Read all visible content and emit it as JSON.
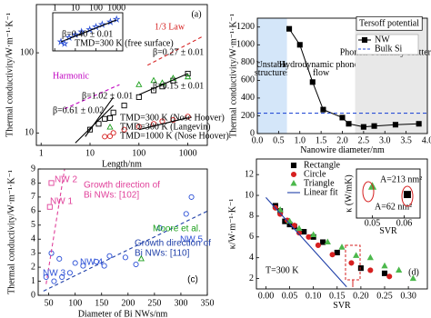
{
  "chart_data": [
    {
      "type": "scatter",
      "x_label": "Length/nm",
      "y_label": "Thermal conductivity/W·m⁻¹·K⁻¹",
      "xlog": true,
      "ylog": true,
      "xlim": [
        0.8,
        2500
      ],
      "ylim": [
        7,
        400
      ],
      "xticks": [
        1,
        10,
        100,
        1000
      ],
      "yticks": [
        10,
        100
      ],
      "series": [
        {
          "name": "TMD=300 K (Nose Hoover)",
          "marker": "square",
          "filled": false,
          "color": "#000000",
          "x": [
            10,
            15,
            20,
            30,
            50,
            100,
            200,
            300,
            500,
            1000
          ],
          "values": [
            11,
            13,
            15,
            18,
            22,
            28,
            34,
            38,
            45,
            55
          ]
        },
        {
          "name": "TMD=300 K (Langevin)",
          "marker": "triangle",
          "filled": false,
          "color": "#1a9e1a",
          "x": [
            100,
            200,
            300,
            500,
            1000
          ],
          "values": [
            40,
            45,
            42,
            48,
            50
          ]
        },
        {
          "name": "TMD=1000 K (Nose Hoover)",
          "marker": "circle",
          "filled": false,
          "color": "#d62020",
          "x": [
            20,
            30,
            50,
            100,
            200,
            300,
            500,
            1000
          ],
          "values": [
            9,
            10,
            11,
            12,
            13,
            14,
            14.5,
            16
          ]
        },
        {
          "marker": "line",
          "color": "#000000",
          "x": [
            100,
            1000
          ],
          "values": [
            30,
            55
          ]
        },
        {
          "marker": "line",
          "color": "#000000",
          "x": [
            8,
            30
          ],
          "values": [
            9,
            28
          ]
        },
        {
          "marker": "line",
          "color": "#000000",
          "x": [
            100,
            1000
          ],
          "values": [
            11,
            15.5
          ]
        },
        {
          "marker": "line",
          "color": "#000000",
          "x": [
            5,
            30
          ],
          "values": [
            7.5,
            22
          ]
        },
        {
          "marker": "dashed",
          "color": "#d62020",
          "x": [
            150,
            2000
          ],
          "values": [
            70,
            160
          ]
        },
        {
          "marker": "dashed",
          "color": "#c000c0",
          "x": [
            3,
            40
          ],
          "values": [
            20,
            40
          ]
        }
      ],
      "annotations": [
        {
          "text": "(a)",
          "color": "#000000"
        },
        {
          "text": "1/3 Law",
          "color": "#d62020"
        },
        {
          "text": "Harmonic",
          "color": "#c000c0"
        },
        {
          "text": "β=0.27 ± 0.01",
          "color": "#000000"
        },
        {
          "text": "β=1.02 ± 0.01",
          "color": "#000000"
        },
        {
          "text": "β=0.15 ± 0.01",
          "color": "#000000"
        },
        {
          "text": "β=0.61 ± 0.02",
          "color": "#000000"
        }
      ],
      "inset": {
        "type": "scatter",
        "xlog": true,
        "ylog": true,
        "xlim": [
          0.8,
          2000
        ],
        "ylim": [
          1,
          100
        ],
        "xticks": [
          1,
          10,
          100,
          1000
        ],
        "series": [
          {
            "name": "TMD=300 K (free surface)",
            "marker": "star",
            "filled": false,
            "color": "#2a4fd6",
            "x": [
              2,
              5,
              10,
              20,
              50,
              100,
              200,
              500,
              1000
            ],
            "values": [
              3,
              5,
              7,
              10,
              13,
              18,
              24,
              33,
              45
            ]
          },
          {
            "marker": "line",
            "color": "#000000",
            "x": [
              2,
              1000
            ],
            "values": [
              3,
              42
            ]
          }
        ],
        "annotations": [
          {
            "text": "β=0.40 ± 0.01",
            "color": "#000000"
          }
        ]
      }
    },
    {
      "type": "scatter",
      "x_label": "Nanowire diameter/nm",
      "y_label": "Thermal conductivity/W·m⁻¹·K⁻¹",
      "xlim": [
        0,
        4
      ],
      "ylim": [
        0,
        1300
      ],
      "xticks": [
        {
          "value": 0,
          "label": "0.0"
        },
        0.5,
        {
          "value": 1,
          "label": "1.0"
        },
        1.5,
        {
          "value": 2,
          "label": "2.0"
        },
        2.5,
        {
          "value": 3,
          "label": "3.0"
        },
        3.5,
        {
          "value": 4,
          "label": "4.0"
        }
      ],
      "yticks": [
        0,
        200,
        400,
        600,
        800,
        1000,
        1200
      ],
      "regions": [
        {
          "label": "Unstable structures",
          "xlim": [
            0,
            0.7
          ],
          "color": "#d4e6f9"
        },
        {
          "label": "Hydrodynamic phonon flow",
          "xlim": [
            0.7,
            2.3
          ],
          "color": "#ffffff"
        },
        {
          "label": "Phonon-boundary scattering",
          "xlim": [
            2.3,
            4
          ],
          "color": "#e8e8e8"
        }
      ],
      "series": [
        {
          "name": "NW",
          "marker": "square",
          "filled": true,
          "joined": true,
          "color": "#000000",
          "x": [
            0.75,
            1.0,
            1.3,
            1.55,
            2.0,
            2.15,
            2.5,
            2.75,
            3.25,
            3.8
          ],
          "values": [
            1180,
            1000,
            580,
            270,
            180,
            110,
            75,
            85,
            100,
            110
          ]
        },
        {
          "name": "Bulk Si",
          "marker": "dashed",
          "color": "#2a4fd6",
          "x": [
            0,
            4
          ],
          "values": [
            230,
            230
          ]
        }
      ],
      "annotations": [
        {
          "text": "Tersoff potential",
          "color": "#000000"
        }
      ]
    },
    {
      "type": "scatter",
      "x_label": "Diameter of Bi NWs/nm",
      "y_label": "Thermal conductivity/W·m⁻¹·K⁻¹",
      "xlim": [
        30,
        350
      ],
      "ylim": [
        0,
        9
      ],
      "xticks": [
        50,
        100,
        150,
        200,
        250,
        300,
        350
      ],
      "yticks": [
        0,
        1,
        2,
        3,
        4,
        5,
        6,
        7,
        8,
        9
      ],
      "series": [
        {
          "marker": "square",
          "filled": false,
          "color": "#e0409a",
          "x": [
            52,
            55
          ],
          "values": [
            6.3,
            8.0
          ]
        },
        {
          "marker": "circle",
          "filled": false,
          "color": "#2a4fd6",
          "x": [
            45,
            55,
            60,
            70,
            75,
            90,
            100,
            115,
            140,
            155,
            165,
            195,
            215,
            260,
            310,
            320
          ],
          "values": [
            1.3,
            3.0,
            1.0,
            2.6,
            1.3,
            1.6,
            2.3,
            2.1,
            2.4,
            2.1,
            2.8,
            2.7,
            2.2,
            4.8,
            5.8,
            7.0
          ]
        },
        {
          "marker": "triangle",
          "filled": false,
          "color": "#1a9e1a",
          "x": [
            225
          ],
          "values": [
            2.6
          ]
        },
        {
          "marker": "dashed",
          "color": "#e0409a",
          "x": [
            45,
            80
          ],
          "values": [
            0.8,
            9
          ]
        },
        {
          "marker": "dashed",
          "color": "#1f3fa8",
          "x": [
            40,
            350
          ],
          "values": [
            0.3,
            6
          ]
        }
      ],
      "annotations": [
        {
          "text": "NW 2",
          "color": "#e0409a"
        },
        {
          "text": "NW 1",
          "color": "#e0409a"
        },
        {
          "text": "Growth direction of",
          "color": "#e0409a"
        },
        {
          "text": "Bi NWs: [102]",
          "color": "#e0409a"
        },
        {
          "text": "Moore et al.",
          "color": "#1a9e1a"
        },
        {
          "text": "NW 5",
          "color": "#2a4fd6"
        },
        {
          "text": "Growth direction of",
          "color": "#1f3fa8"
        },
        {
          "text": "Bi NWs: [110]",
          "color": "#1f3fa8"
        },
        {
          "text": "NW 3",
          "color": "#2a4fd6"
        },
        {
          "text": "NW 4",
          "color": "#2a4fd6"
        },
        {
          "text": "(c)",
          "color": "#000000"
        }
      ]
    },
    {
      "type": "scatter",
      "x_label": "SVR",
      "y_label": "κ/W·m⁻¹·K⁻¹",
      "xlim": [
        -0.02,
        0.34
      ],
      "ylim": [
        1,
        13.5
      ],
      "xticks": [
        {
          "value": 0,
          "label": "0.00"
        },
        0.05,
        {
          "value": 0.1,
          "label": "0.10"
        },
        0.15,
        {
          "value": 0.2,
          "label": "0.20"
        },
        0.25,
        {
          "value": 0.3,
          "label": "0.30"
        }
      ],
      "yticks": [
        2,
        4,
        6,
        8,
        10,
        12
      ],
      "series": [
        {
          "name": "Rectangle",
          "marker": "square",
          "filled": true,
          "color": "#000000",
          "x": [
            0.02,
            0.03,
            0.04,
            0.05,
            0.06,
            0.08,
            0.1,
            0.12,
            0.15,
            0.2,
            0.25
          ],
          "values": [
            9,
            8.5,
            7.5,
            7.2,
            7.0,
            6.5,
            6,
            5.5,
            4.5,
            3,
            2.5
          ]
        },
        {
          "name": "Circle",
          "marker": "circle",
          "filled": true,
          "color": "#d62020",
          "x": [
            0.02,
            0.03,
            0.045,
            0.06,
            0.07,
            0.09,
            0.11,
            0.14,
            0.18,
            0.22,
            0.26
          ],
          "values": [
            8.8,
            8.2,
            7.6,
            7.1,
            6.4,
            6.0,
            5.2,
            4.3,
            3.5,
            2.8,
            2.2
          ]
        },
        {
          "name": "Triangle",
          "marker": "triangle",
          "filled": true,
          "color": "#4cb84c",
          "x": [
            0.03,
            0.05,
            0.07,
            0.1,
            0.13,
            0.16,
            0.19,
            0.22,
            0.25,
            0.28,
            0.31
          ],
          "values": [
            8.6,
            7.5,
            6.8,
            6.2,
            5.5,
            5.0,
            4.2,
            4.0,
            3.2,
            2.8,
            2.0
          ]
        },
        {
          "name": "Linear fit",
          "marker": "line",
          "color": "#1f3fa8",
          "x": [
            0,
            0.17
          ],
          "values": [
            9.8,
            1.2
          ]
        }
      ],
      "annotations": [
        {
          "text": "T=300 K",
          "color": "#000000"
        },
        {
          "text": "(d)",
          "color": "#000000"
        }
      ],
      "inset": {
        "type": "scatter",
        "x_label": "SVR",
        "y_label": "κ (W/mK)",
        "xlim": [
          0.045,
          0.065
        ],
        "ylim": [
          6,
          8.5
        ],
        "xticks": [
          0.05,
          0.06
        ],
        "series": [
          {
            "marker": "triangle",
            "filled": true,
            "color": "#4cb84c",
            "x": [
              0.05
            ],
            "values": [
              7.6
            ]
          },
          {
            "marker": "square",
            "filled": true,
            "color": "#000000",
            "x": [
              0.061
            ],
            "values": [
              7.2
            ]
          }
        ],
        "annotations": [
          {
            "text": "A=213 nm²",
            "color": "#000000"
          },
          {
            "text": "A=62 nm²",
            "color": "#000000"
          }
        ]
      }
    }
  ]
}
